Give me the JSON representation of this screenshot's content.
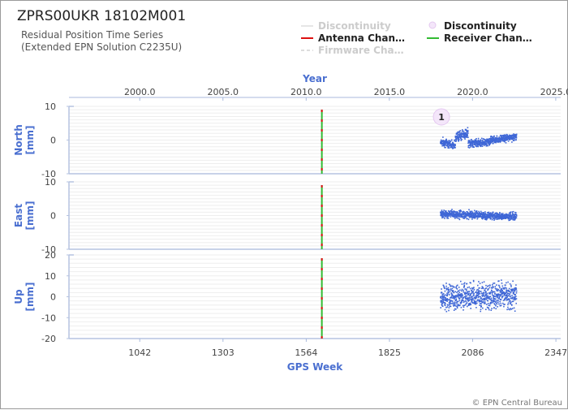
{
  "chart_data": {
    "type": "scatter",
    "title": "ZPRS00UKR 18102M001",
    "subtitle": [
      "Residual Position Time Series",
      "(Extended EPN Solution C2235U)"
    ],
    "legend": [
      {
        "label": "Discontinuity",
        "style": "line",
        "color": "#e6e6e6",
        "dimmed": true
      },
      {
        "label": "Discontinuity",
        "style": "circle",
        "color": "#e4c8f0",
        "dimmed": false
      },
      {
        "label": "Antenna Chan…",
        "style": "line",
        "color": "#dd1111",
        "dimmed": false
      },
      {
        "label": "Receiver Chan…",
        "style": "line",
        "color": "#33bb33",
        "dimmed": false
      },
      {
        "label": "Firmware Cha…",
        "style": "dash",
        "color": "#dddddd",
        "dimmed": true
      }
    ],
    "top_axis": {
      "label": "Year",
      "ticks": [
        "2000.0",
        "2005.0",
        "2010.0",
        "2015.0",
        "2020.0",
        "2025.0"
      ],
      "tick_values": [
        2000.0,
        2005.0,
        2010.0,
        2015.0,
        2020.0,
        2025.0
      ]
    },
    "bottom_axis": {
      "label": "GPS Week",
      "ticks": [
        "1042",
        "1303",
        "1564",
        "1825",
        "2086",
        "2347"
      ],
      "tick_values": [
        1042,
        1303,
        1564,
        1825,
        2086,
        2347
      ],
      "range": [
        820,
        2362
      ]
    },
    "panels": [
      {
        "name": "North",
        "ylabel": "North\n[mm]",
        "ylim": [
          -10,
          10
        ],
        "ticks": [
          10,
          0,
          -10
        ],
        "segments": [
          {
            "x": [
              1983,
              2030
            ],
            "y": [
              -0.5,
              -1.5
            ],
            "noise": 1.0
          },
          {
            "x": [
              2030,
              2070
            ],
            "y": [
              1.0,
              2.0
            ],
            "noise": 1.2
          },
          {
            "x": [
              2070,
              2140
            ],
            "y": [
              -1.0,
              -0.5
            ],
            "noise": 0.9
          },
          {
            "x": [
              2140,
              2222
            ],
            "y": [
              0.0,
              1.0
            ],
            "noise": 0.9
          }
        ]
      },
      {
        "name": "East",
        "ylabel": "East\n[mm]",
        "ylim": [
          -10,
          10
        ],
        "ticks": [
          10,
          0,
          -10
        ],
        "segments": [
          {
            "x": [
              1983,
              2222
            ],
            "y": [
              0.5,
              -0.3
            ],
            "noise": 0.9
          }
        ]
      },
      {
        "name": "Up",
        "ylabel": "Up\n[mm]",
        "ylim": [
          -20,
          20
        ],
        "ticks": [
          20,
          10,
          0,
          -10,
          -20
        ],
        "segments": [
          {
            "x": [
              1983,
              2222
            ],
            "y": [
              0.0,
              0.5
            ],
            "noise": 5.0
          }
        ]
      }
    ],
    "events": [
      {
        "type": "antenna_receiver_change",
        "gps_week": 1613,
        "colors": [
          "#dd1111",
          "#33bb33"
        ]
      }
    ],
    "discontinuities": [
      {
        "gps_week": 1988,
        "label": "1"
      }
    ],
    "series_color": "#3f67d6",
    "grid": true
  },
  "footer": {
    "copyright": "© EPN Central Bureau"
  }
}
